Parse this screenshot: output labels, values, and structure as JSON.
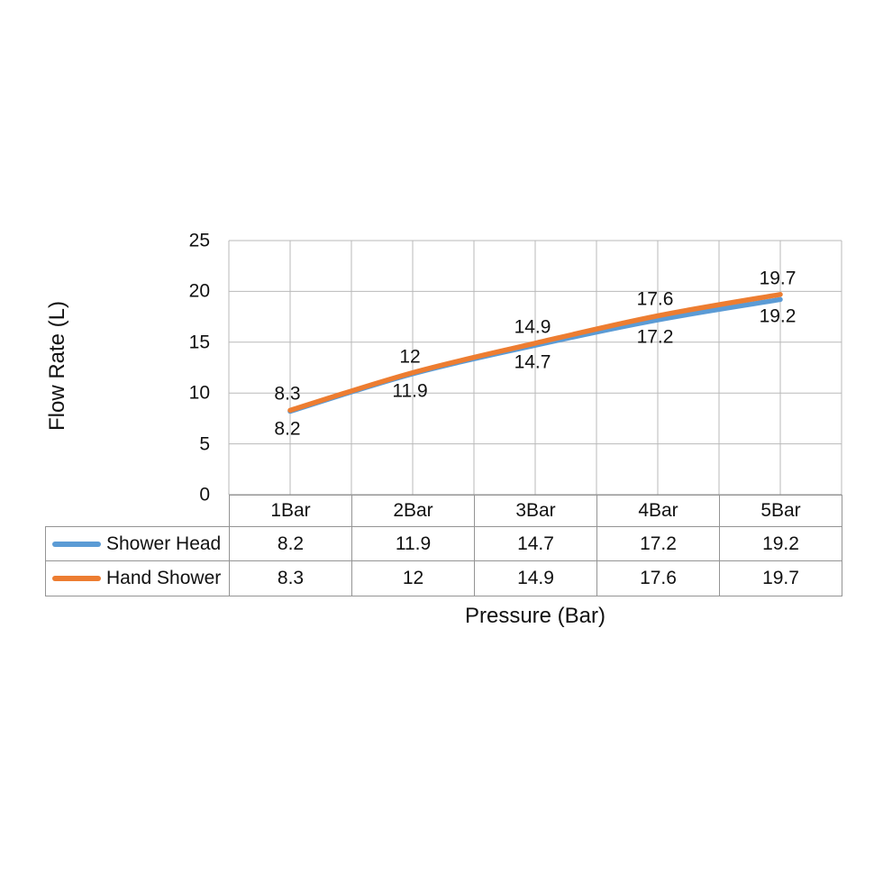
{
  "chart_data": {
    "type": "line",
    "title": "",
    "xlabel": "Pressure (Bar)",
    "ylabel": "Flow Rate (L)",
    "categories": [
      "1Bar",
      "2Bar",
      "3Bar",
      "4Bar",
      "5Bar"
    ],
    "series": [
      {
        "name": "Shower Head",
        "color": "#5B9BD5",
        "values": [
          8.2,
          11.9,
          14.7,
          17.2,
          19.2
        ],
        "data_labels": [
          "8.2",
          "11.9",
          "14.7",
          "17.2",
          "19.2"
        ],
        "label_position": "below"
      },
      {
        "name": "Hand Shower",
        "color": "#ED7D31",
        "values": [
          8.3,
          12,
          14.9,
          17.6,
          19.7
        ],
        "data_labels": [
          "8.3",
          "12",
          "14.9",
          "17.6",
          "19.7"
        ],
        "label_position": "above"
      }
    ],
    "y_ticks": [
      "0",
      "5",
      "10",
      "15",
      "20",
      "25"
    ],
    "ylim": [
      0,
      25
    ],
    "grid": true,
    "smooth_lines": true,
    "data_labels_shown": true,
    "legend_position": "data-table-left",
    "x_axis_layout": "categories-between-gridlines-with-half-step-gridlines"
  },
  "styles": {
    "background": "#ffffff",
    "grid_color": "#b9b9b9",
    "table_border_color": "#949494",
    "text_color": "#111111",
    "series_blue": "#5B9BD5",
    "series_orange": "#ED7D31"
  }
}
